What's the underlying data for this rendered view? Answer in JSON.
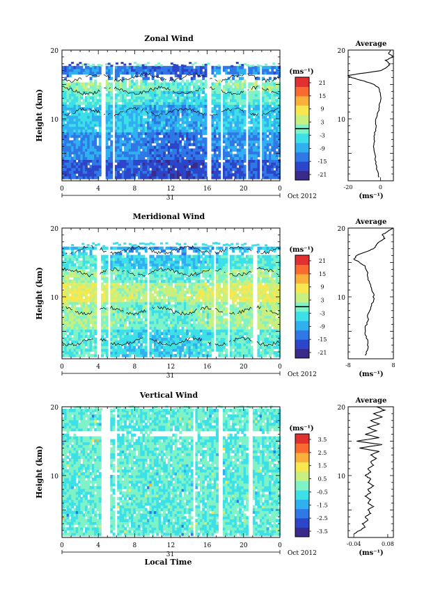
{
  "colorscale": [
    "#3a2a8a",
    "#2d45c8",
    "#2f78e6",
    "#30b0f0",
    "#3ee0e8",
    "#7ff2c8",
    "#c8f080",
    "#f8e850",
    "#fbb03b",
    "#f86a30",
    "#e03030"
  ],
  "chart_data": [
    {
      "type": "heatmap",
      "id": "zonal",
      "title": "Zonal Wind",
      "ylabel": "Height (km)",
      "xlim": [
        0,
        24
      ],
      "ylim": [
        1,
        20
      ],
      "xticks": [
        "0",
        "4",
        "8",
        "12",
        "16",
        "20",
        "0"
      ],
      "yticks": [
        "20",
        "10"
      ],
      "date_marker": "31",
      "date_label": "Oct 2012",
      "colorbar": {
        "unit": "(ms⁻¹)",
        "ticks": [
          "21",
          "15",
          "9",
          "3",
          "-3",
          "-9",
          "-15",
          "-21"
        ],
        "range": [
          -24,
          24
        ]
      },
      "average": {
        "title": "Average",
        "xticks": [
          "-20",
          "0"
        ],
        "xlim": [
          -20,
          8
        ],
        "yticks": [
          "20",
          "10"
        ],
        "xlabel": "(ms⁻¹)",
        "profile": [
          [
            -1,
            1.5
          ],
          [
            -2,
            2.5
          ],
          [
            -3,
            3.5
          ],
          [
            -3,
            4.5
          ],
          [
            -4,
            5.5
          ],
          [
            -4,
            6.5
          ],
          [
            -4,
            7.5
          ],
          [
            -3,
            8.5
          ],
          [
            -3,
            9.5
          ],
          [
            -2,
            10.5
          ],
          [
            -1,
            11.5
          ],
          [
            0,
            12.5
          ],
          [
            0,
            13.5
          ],
          [
            -1,
            14.5
          ],
          [
            -4,
            15
          ],
          [
            -10,
            15.5
          ],
          [
            -18,
            16
          ],
          [
            -20,
            16.3
          ],
          [
            -12,
            16.6
          ],
          [
            0,
            17
          ],
          [
            4,
            17.5
          ],
          [
            6,
            18
          ],
          [
            3,
            18.5
          ],
          [
            8,
            19
          ],
          [
            5,
            19.5
          ],
          [
            6,
            20
          ]
        ]
      }
    },
    {
      "type": "heatmap",
      "id": "meridional",
      "title": "Meridional Wind",
      "ylabel": "Height (km)",
      "xlim": [
        0,
        24
      ],
      "ylim": [
        1,
        20
      ],
      "xticks": [
        "0",
        "4",
        "8",
        "12",
        "16",
        "20",
        "0"
      ],
      "yticks": [
        "20",
        "10"
      ],
      "date_marker": "31",
      "date_label": "Oct 2012",
      "colorbar": {
        "unit": "(ms⁻¹)",
        "ticks": [
          "21",
          "15",
          "9",
          "3",
          "-3",
          "-9",
          "-15",
          "-21"
        ],
        "range": [
          -24,
          24
        ]
      },
      "average": {
        "title": "Average",
        "xticks": [
          "-8",
          "8"
        ],
        "xlim": [
          -8,
          8
        ],
        "yticks": [
          "20",
          "10"
        ],
        "xlabel": "(ms⁻¹)",
        "profile": [
          [
            -2,
            1.5
          ],
          [
            -1,
            2.5
          ],
          [
            -1,
            3.5
          ],
          [
            -2,
            4.5
          ],
          [
            -2,
            5.5
          ],
          [
            -1,
            6.5
          ],
          [
            -1,
            7.5
          ],
          [
            0,
            8.5
          ],
          [
            1,
            9.5
          ],
          [
            1,
            10.5
          ],
          [
            0,
            11.5
          ],
          [
            -1,
            12.5
          ],
          [
            -1,
            13.5
          ],
          [
            -2,
            14.5
          ],
          [
            -4,
            15
          ],
          [
            -6,
            15.5
          ],
          [
            -5,
            16
          ],
          [
            -2,
            16.5
          ],
          [
            1,
            17
          ],
          [
            2,
            17.5
          ],
          [
            3,
            18
          ],
          [
            5,
            18.5
          ],
          [
            4,
            19
          ],
          [
            6,
            19.5
          ],
          [
            8,
            20
          ]
        ]
      }
    },
    {
      "type": "heatmap",
      "id": "vertical",
      "title": "Vertical Wind",
      "ylabel": "Height (km)",
      "xlabel": "Local Time",
      "xlim": [
        0,
        24
      ],
      "ylim": [
        1,
        20
      ],
      "xticks": [
        "0",
        "4",
        "8",
        "12",
        "16",
        "20",
        "0"
      ],
      "yticks": [
        "20",
        "10"
      ],
      "date_marker": "31",
      "date_label": "Oct 2012",
      "colorbar": {
        "unit": "(ms⁻¹)",
        "ticks": [
          "3.5",
          "2.5",
          "1.5",
          "0.5",
          "-0.5",
          "-1.5",
          "-2.5",
          "-3.5"
        ],
        "range": [
          -4,
          4
        ]
      },
      "average": {
        "title": "Average",
        "xticks": [
          "-0.04",
          "0.08"
        ],
        "xlim": [
          -0.06,
          0.1
        ],
        "yticks": [
          "20",
          "10"
        ],
        "xlabel": "(ms⁻¹)",
        "profile": [
          [
            -0.04,
            1.5
          ],
          [
            -0.02,
            2
          ],
          [
            0.0,
            2.5
          ],
          [
            -0.01,
            3
          ],
          [
            0.01,
            3.5
          ],
          [
            0.0,
            4
          ],
          [
            0.02,
            4.5
          ],
          [
            0.01,
            5
          ],
          [
            0.03,
            5.5
          ],
          [
            0.01,
            6
          ],
          [
            0.02,
            6.5
          ],
          [
            0.0,
            7
          ],
          [
            0.02,
            7.5
          ],
          [
            0.01,
            8
          ],
          [
            0.03,
            8.5
          ],
          [
            0.01,
            9
          ],
          [
            0.02,
            9.5
          ],
          [
            0.0,
            10
          ],
          [
            0.02,
            10.5
          ],
          [
            0.01,
            11
          ],
          [
            0.03,
            11.5
          ],
          [
            0.02,
            12
          ],
          [
            0.04,
            12.5
          ],
          [
            0.02,
            13
          ],
          [
            0.05,
            13.5
          ],
          [
            -0.02,
            14
          ],
          [
            0.06,
            14.5
          ],
          [
            -0.03,
            15
          ],
          [
            0.05,
            15.5
          ],
          [
            0.0,
            16
          ],
          [
            0.04,
            16.5
          ],
          [
            0.01,
            17
          ],
          [
            0.05,
            17.5
          ],
          [
            0.02,
            18
          ],
          [
            0.06,
            18.5
          ],
          [
            0.03,
            19
          ],
          [
            0.07,
            19.5
          ],
          [
            0.04,
            20
          ]
        ]
      }
    }
  ]
}
